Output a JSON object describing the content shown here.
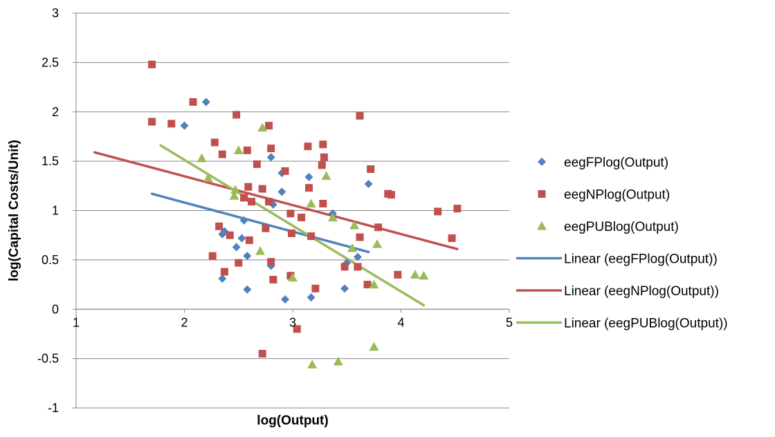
{
  "chart_data": {
    "type": "scatter",
    "title": "",
    "xlabel": "log(Output)",
    "ylabel": "log(Capital Costs/Unit)",
    "xlim": [
      1,
      5
    ],
    "ylim": [
      -1,
      3
    ],
    "x_ticks": [
      1,
      2,
      3,
      4,
      5
    ],
    "y_ticks": [
      3,
      2.5,
      2,
      1.5,
      1,
      0.5,
      0,
      -0.5,
      -1
    ],
    "x_tick_labels": [
      "1",
      "2",
      "3",
      "4",
      "5"
    ],
    "y_tick_labels": [
      "3",
      "2.5",
      "2",
      "1.5",
      "1",
      "0.5",
      "0",
      "-0.5",
      "-1"
    ],
    "grid": "horizontal",
    "legend_position": "right",
    "series": [
      {
        "name": "eegFPlog(Output)",
        "marker": "diamond",
        "color": "#4F81BD",
        "points": [
          [
            2.2,
            2.1
          ],
          [
            2.0,
            1.86
          ],
          [
            2.8,
            1.54
          ],
          [
            3.15,
            1.34
          ],
          [
            2.9,
            1.38
          ],
          [
            2.9,
            1.19
          ],
          [
            3.7,
            1.27
          ],
          [
            2.82,
            1.06
          ],
          [
            2.55,
            0.9
          ],
          [
            2.35,
            0.76
          ],
          [
            2.37,
            0.79
          ],
          [
            2.48,
            0.63
          ],
          [
            2.53,
            0.72
          ],
          [
            2.58,
            0.54
          ],
          [
            2.8,
            0.44
          ],
          [
            2.35,
            0.31
          ],
          [
            2.58,
            0.2
          ],
          [
            2.93,
            0.1
          ],
          [
            3.17,
            0.12
          ],
          [
            3.48,
            0.21
          ],
          [
            3.6,
            0.53
          ],
          [
            3.37,
            0.97
          ],
          [
            3.5,
            0.47
          ]
        ]
      },
      {
        "name": "eegNPlog(Output)",
        "marker": "square",
        "color": "#C0504D",
        "points": [
          [
            1.7,
            2.48
          ],
          [
            1.7,
            1.9
          ],
          [
            1.88,
            1.88
          ],
          [
            2.08,
            2.1
          ],
          [
            2.48,
            1.97
          ],
          [
            2.78,
            1.86
          ],
          [
            3.62,
            1.96
          ],
          [
            2.28,
            1.69
          ],
          [
            2.35,
            1.57
          ],
          [
            2.58,
            1.61
          ],
          [
            2.8,
            1.63
          ],
          [
            3.14,
            1.65
          ],
          [
            3.28,
            1.67
          ],
          [
            3.29,
            1.54
          ],
          [
            3.27,
            1.46
          ],
          [
            2.93,
            1.4
          ],
          [
            2.67,
            1.47
          ],
          [
            3.72,
            1.42
          ],
          [
            2.59,
            1.24
          ],
          [
            2.72,
            1.22
          ],
          [
            3.15,
            1.23
          ],
          [
            3.88,
            1.17
          ],
          [
            3.91,
            1.16
          ],
          [
            2.78,
            1.09
          ],
          [
            3.28,
            1.07
          ],
          [
            2.55,
            1.13
          ],
          [
            2.62,
            1.09
          ],
          [
            3.08,
            0.93
          ],
          [
            2.98,
            0.97
          ],
          [
            3.17,
            0.74
          ],
          [
            2.99,
            0.77
          ],
          [
            3.62,
            0.73
          ],
          [
            3.79,
            0.83
          ],
          [
            2.32,
            0.84
          ],
          [
            2.42,
            0.75
          ],
          [
            2.75,
            0.82
          ],
          [
            2.6,
            0.7
          ],
          [
            4.34,
            0.99
          ],
          [
            4.52,
            1.02
          ],
          [
            4.47,
            0.72
          ],
          [
            2.26,
            0.54
          ],
          [
            2.5,
            0.47
          ],
          [
            2.8,
            0.48
          ],
          [
            2.37,
            0.38
          ],
          [
            2.82,
            0.3
          ],
          [
            2.98,
            0.34
          ],
          [
            3.21,
            0.21
          ],
          [
            3.48,
            0.43
          ],
          [
            3.6,
            0.43
          ],
          [
            3.69,
            0.25
          ],
          [
            3.97,
            0.35
          ],
          [
            3.04,
            -0.2
          ],
          [
            2.72,
            -0.45
          ]
        ]
      },
      {
        "name": "eegPUBlog(Output)",
        "marker": "triangle",
        "color": "#9BBB59",
        "points": [
          [
            2.72,
            1.84
          ],
          [
            2.16,
            1.53
          ],
          [
            2.5,
            1.61
          ],
          [
            2.22,
            1.33
          ],
          [
            2.47,
            1.21
          ],
          [
            2.46,
            1.15
          ],
          [
            3.31,
            1.35
          ],
          [
            3.17,
            1.07
          ],
          [
            3.37,
            0.93
          ],
          [
            3.57,
            0.85
          ],
          [
            3.55,
            0.62
          ],
          [
            3.78,
            0.66
          ],
          [
            2.7,
            0.59
          ],
          [
            3.0,
            0.32
          ],
          [
            3.75,
            0.25
          ],
          [
            4.13,
            0.35
          ],
          [
            4.21,
            0.34
          ],
          [
            3.75,
            -0.38
          ],
          [
            3.42,
            -0.53
          ],
          [
            3.18,
            -0.56
          ]
        ]
      }
    ],
    "trendlines": [
      {
        "name": "Linear (eegFPlog(Output))",
        "color": "#4F81BD",
        "x": [
          1.7,
          3.7
        ],
        "y": [
          1.17,
          0.58
        ]
      },
      {
        "name": "Linear (eegNPlog(Output))",
        "color": "#C0504D",
        "x": [
          1.17,
          4.52
        ],
        "y": [
          1.59,
          0.61
        ]
      },
      {
        "name": "Linear (eegPUBlog(Output))",
        "color": "#9BBB59",
        "x": [
          1.78,
          4.21
        ],
        "y": [
          1.66,
          0.04
        ]
      }
    ]
  }
}
